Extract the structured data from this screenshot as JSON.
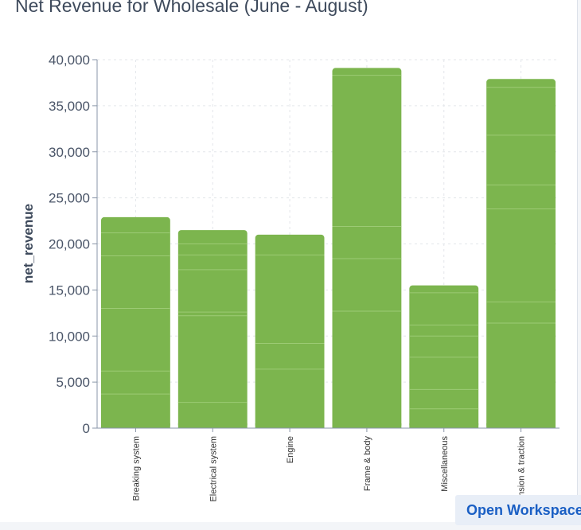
{
  "chart_data": {
    "type": "bar",
    "title": "Net Revenue for Wholesale (June - August)",
    "xlabel": "",
    "ylabel": "net_revenue",
    "categories": [
      "Breaking system",
      "Electrical system",
      "Engine",
      "Frame & body",
      "Miscellaneous",
      "Suspension & traction"
    ],
    "values": [
      22900,
      21500,
      21000,
      39100,
      15500,
      37900
    ],
    "ylim": [
      0,
      40000
    ],
    "yticks": [
      "0",
      "5,000",
      "10,000",
      "15,000",
      "20,000",
      "25,000",
      "30,000",
      "35,000",
      "40,000"
    ],
    "segments": [
      [
        3700,
        6200,
        13000,
        18700,
        21200
      ],
      [
        2800,
        12200,
        12600,
        17200,
        18800,
        20000
      ],
      [
        6400,
        9200,
        18800
      ],
      [
        12700,
        18400,
        21900,
        38300
      ],
      [
        2100,
        4200,
        7700,
        10000,
        11200,
        14700
      ],
      [
        11400,
        13700,
        23800,
        26400,
        31800,
        37000
      ]
    ],
    "bar_color": "#7cb54e",
    "segment_line_color": "#9dcb75",
    "grid": true,
    "legend": "none"
  },
  "toolbar": {
    "open_workspace_label": "Open Workspace"
  }
}
